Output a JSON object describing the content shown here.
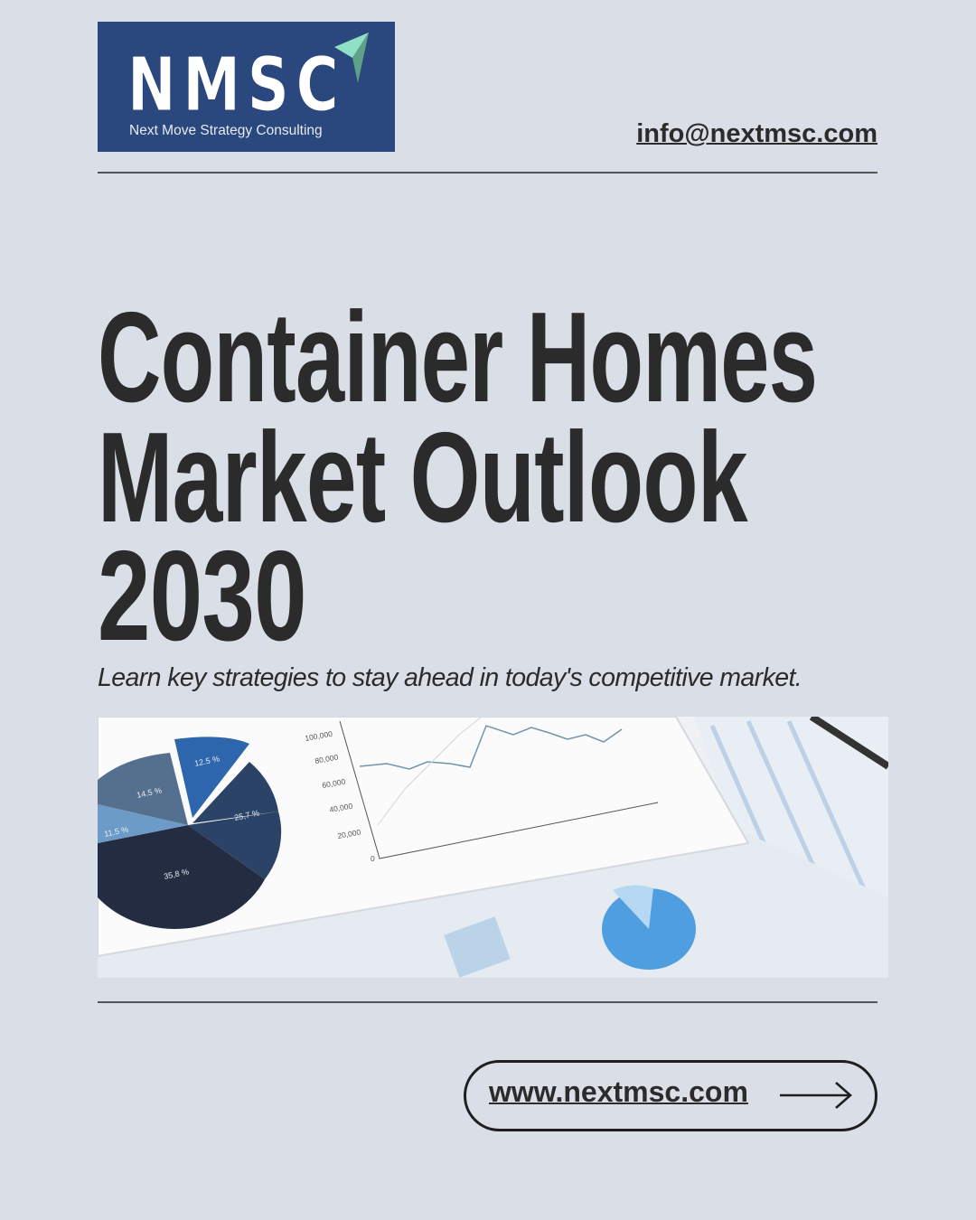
{
  "logo": {
    "mark": "NMSC",
    "tagline": "Next Move Strategy Consulting",
    "colors": {
      "background": "#2a477e",
      "arrow_light": "#8fe0c4",
      "arrow_dark": "#5fa088"
    }
  },
  "header": {
    "email": "info@nextmsc.com"
  },
  "hero": {
    "title_lines": [
      "Container Homes",
      "Market Outlook",
      "2030"
    ],
    "subtitle": "Learn key strategies to stay ahead in today's competitive market."
  },
  "photo": {
    "pie_labels": [
      "12.5 %",
      "14.5 %",
      "25,7 %",
      "11.5 %",
      "35,8 %"
    ],
    "axis_labels": [
      "100,000",
      "80,000",
      "60,000",
      "40,000",
      "20,000",
      "0"
    ]
  },
  "cta": {
    "label": "www.nextmsc.com",
    "icon": "arrow-right-icon"
  },
  "colors": {
    "background": "#d9dee7",
    "text": "#2b2b2b"
  }
}
